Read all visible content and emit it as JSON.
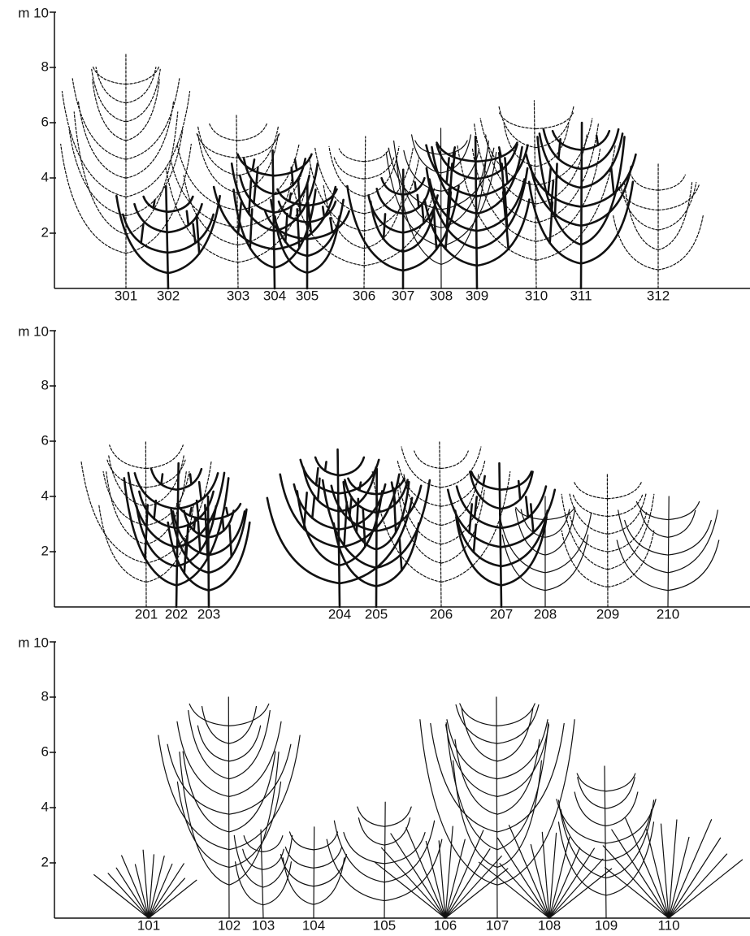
{
  "panels": [
    {
      "axis": {
        "unit_label": "m 10",
        "ticks": [
          "8",
          "6",
          "4",
          "2"
        ]
      },
      "labels": [
        "301",
        "302",
        "303",
        "304",
        "305",
        "306",
        "307",
        "308",
        "309",
        "310",
        "311",
        "312"
      ]
    },
    {
      "axis": {
        "unit_label": "m 10",
        "ticks": [
          "8",
          "6",
          "4",
          "2"
        ]
      },
      "labels": [
        "201",
        "202",
        "203",
        "204",
        "205",
        "206",
        "207",
        "208",
        "209",
        "210"
      ]
    },
    {
      "axis": {
        "unit_label": "m 10",
        "ticks": [
          "8",
          "6",
          "4",
          "2"
        ]
      },
      "labels": [
        "101",
        "102",
        "103",
        "104",
        "105",
        "106",
        "107",
        "108",
        "109",
        "110"
      ]
    }
  ]
}
